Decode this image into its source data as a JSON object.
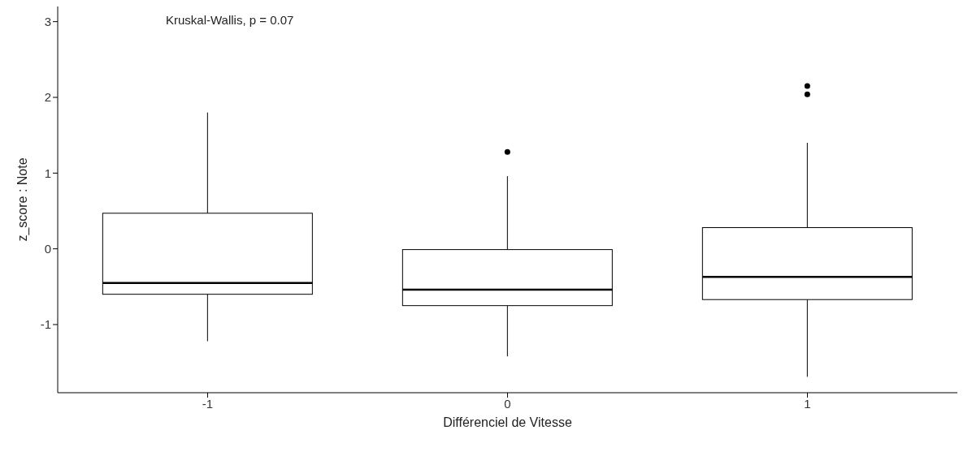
{
  "chart_data": {
    "type": "box",
    "xlabel": "Différenciel de Vitesse",
    "ylabel": "z_score : Note",
    "categories": [
      "-1",
      "0",
      "1"
    ],
    "boxes": [
      {
        "low": -1.22,
        "q1": -0.6,
        "median": -0.45,
        "q3": 0.47,
        "high": 1.8
      },
      {
        "low": -1.42,
        "q1": -0.75,
        "median": -0.54,
        "q3": -0.01,
        "high": 0.96,
        "outliers": [
          1.28
        ]
      },
      {
        "low": -1.69,
        "q1": -0.67,
        "median": -0.37,
        "q3": 0.28,
        "high": 1.4,
        "outliers": [
          2.04,
          2.15
        ]
      }
    ],
    "ylim": [
      -1.9,
      3.2
    ],
    "yticks": [
      -1,
      0,
      1,
      2,
      3
    ],
    "grid": false,
    "legend": false,
    "annotations": [
      "Kruskal-Wallis, p = 0.07"
    ]
  }
}
